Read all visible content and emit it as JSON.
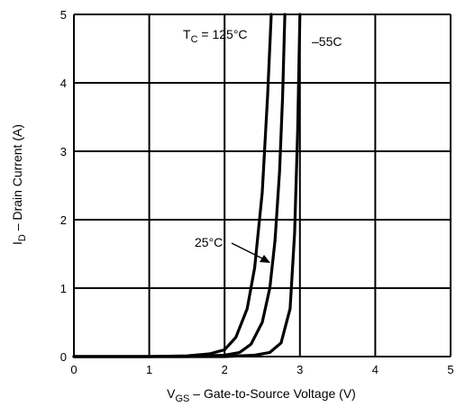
{
  "chart_data": {
    "type": "line",
    "title": "",
    "xlabel": {
      "main": "V",
      "sub": "GS",
      "rest": " – Gate-to-Source Voltage (V)"
    },
    "ylabel": {
      "main": "I",
      "sub": "D",
      "rest": " – Drain Current (A)"
    },
    "xlim": [
      0,
      5
    ],
    "ylim": [
      0,
      5
    ],
    "xticks": [
      "0",
      "1",
      "2",
      "3",
      "4",
      "5"
    ],
    "yticks": [
      "0",
      "1",
      "2",
      "3",
      "4",
      "5"
    ],
    "grid": true,
    "series": [
      {
        "name": "T_C = 125°C",
        "color": "#000000",
        "x": [
          0,
          1.0,
          1.5,
          1.8,
          2.0,
          2.15,
          2.3,
          2.4,
          2.5,
          2.57,
          2.62
        ],
        "y": [
          0,
          0,
          0.01,
          0.04,
          0.1,
          0.28,
          0.7,
          1.3,
          2.4,
          3.8,
          5
        ]
      },
      {
        "name": "25°C",
        "color": "#000000",
        "x": [
          0,
          1.5,
          2.0,
          2.2,
          2.35,
          2.5,
          2.6,
          2.67,
          2.73,
          2.77,
          2.8
        ],
        "y": [
          0,
          0,
          0.02,
          0.06,
          0.18,
          0.5,
          1.0,
          1.7,
          2.7,
          3.8,
          5
        ]
      },
      {
        "name": "–55C",
        "color": "#000000",
        "x": [
          0,
          2.0,
          2.4,
          2.6,
          2.75,
          2.87,
          2.93,
          2.97,
          3.0
        ],
        "y": [
          0,
          0,
          0.02,
          0.06,
          0.2,
          0.7,
          1.8,
          3.3,
          5
        ]
      }
    ],
    "annotations": {
      "tc_label": {
        "main": "T",
        "sub": "C",
        "rest": " = 125°C"
      },
      "mid_label": "25°C",
      "low_label": "–55C"
    }
  }
}
